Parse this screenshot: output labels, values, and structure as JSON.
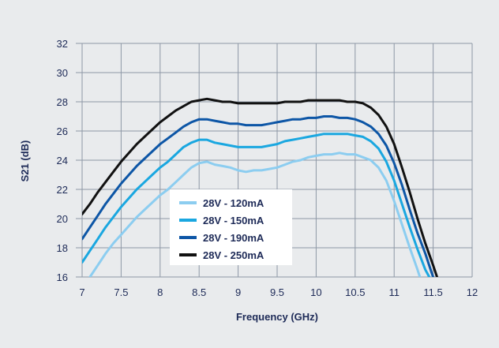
{
  "chart_data": {
    "type": "line",
    "title": "",
    "xlabel": "Frequency (GHz)",
    "ylabel": "S21 (dB)",
    "xlim": [
      7,
      12
    ],
    "ylim": [
      16,
      32
    ],
    "x_ticks": [
      "7",
      "7.5",
      "8",
      "8.5",
      "9",
      "9.5",
      "10",
      "10.5",
      "11",
      "11.5",
      "12"
    ],
    "y_ticks": [
      "16",
      "18",
      "20",
      "22",
      "24",
      "26",
      "28",
      "30",
      "32"
    ],
    "grid": true,
    "legend_position": "center-left",
    "series": [
      {
        "name": "28V - 120mA",
        "color": "#8ccdf0",
        "points": [
          [
            7.1,
            16.0
          ],
          [
            7.2,
            16.8
          ],
          [
            7.3,
            17.6
          ],
          [
            7.4,
            18.3
          ],
          [
            7.5,
            18.9
          ],
          [
            7.6,
            19.5
          ],
          [
            7.7,
            20.1
          ],
          [
            7.8,
            20.6
          ],
          [
            7.9,
            21.1
          ],
          [
            8.0,
            21.6
          ],
          [
            8.1,
            22.0
          ],
          [
            8.2,
            22.5
          ],
          [
            8.3,
            23.0
          ],
          [
            8.4,
            23.5
          ],
          [
            8.5,
            23.8
          ],
          [
            8.6,
            23.9
          ],
          [
            8.7,
            23.7
          ],
          [
            8.8,
            23.6
          ],
          [
            8.9,
            23.5
          ],
          [
            9.0,
            23.3
          ],
          [
            9.1,
            23.2
          ],
          [
            9.2,
            23.3
          ],
          [
            9.3,
            23.3
          ],
          [
            9.4,
            23.4
          ],
          [
            9.5,
            23.5
          ],
          [
            9.6,
            23.7
          ],
          [
            9.7,
            23.9
          ],
          [
            9.8,
            24.0
          ],
          [
            9.9,
            24.2
          ],
          [
            10.0,
            24.3
          ],
          [
            10.1,
            24.4
          ],
          [
            10.2,
            24.4
          ],
          [
            10.3,
            24.5
          ],
          [
            10.4,
            24.4
          ],
          [
            10.5,
            24.4
          ],
          [
            10.6,
            24.2
          ],
          [
            10.7,
            24.0
          ],
          [
            10.8,
            23.5
          ],
          [
            10.9,
            22.6
          ],
          [
            11.0,
            21.2
          ],
          [
            11.1,
            19.6
          ],
          [
            11.2,
            18.0
          ],
          [
            11.3,
            16.5
          ],
          [
            11.33,
            16.0
          ]
        ]
      },
      {
        "name": "28V - 150mA",
        "color": "#1aa7e0",
        "points": [
          [
            7.0,
            17.0
          ],
          [
            7.1,
            17.8
          ],
          [
            7.2,
            18.6
          ],
          [
            7.3,
            19.4
          ],
          [
            7.4,
            20.1
          ],
          [
            7.5,
            20.8
          ],
          [
            7.6,
            21.4
          ],
          [
            7.7,
            22.0
          ],
          [
            7.8,
            22.5
          ],
          [
            7.9,
            23.0
          ],
          [
            8.0,
            23.5
          ],
          [
            8.1,
            23.9
          ],
          [
            8.2,
            24.4
          ],
          [
            8.3,
            24.9
          ],
          [
            8.4,
            25.2
          ],
          [
            8.5,
            25.4
          ],
          [
            8.6,
            25.4
          ],
          [
            8.7,
            25.2
          ],
          [
            8.8,
            25.1
          ],
          [
            8.9,
            25.0
          ],
          [
            9.0,
            24.9
          ],
          [
            9.1,
            24.9
          ],
          [
            9.2,
            24.9
          ],
          [
            9.3,
            24.9
          ],
          [
            9.4,
            25.0
          ],
          [
            9.5,
            25.1
          ],
          [
            9.6,
            25.3
          ],
          [
            9.7,
            25.4
          ],
          [
            9.8,
            25.5
          ],
          [
            9.9,
            25.6
          ],
          [
            10.0,
            25.7
          ],
          [
            10.1,
            25.8
          ],
          [
            10.2,
            25.8
          ],
          [
            10.3,
            25.8
          ],
          [
            10.4,
            25.8
          ],
          [
            10.5,
            25.7
          ],
          [
            10.6,
            25.6
          ],
          [
            10.7,
            25.3
          ],
          [
            10.8,
            24.8
          ],
          [
            10.9,
            23.9
          ],
          [
            11.0,
            22.6
          ],
          [
            11.1,
            21.0
          ],
          [
            11.2,
            19.4
          ],
          [
            11.3,
            17.9
          ],
          [
            11.4,
            16.5
          ],
          [
            11.45,
            16.0
          ]
        ]
      },
      {
        "name": "28V - 190mA",
        "color": "#0d56a6",
        "points": [
          [
            7.0,
            18.6
          ],
          [
            7.1,
            19.4
          ],
          [
            7.2,
            20.2
          ],
          [
            7.3,
            21.0
          ],
          [
            7.4,
            21.7
          ],
          [
            7.5,
            22.4
          ],
          [
            7.6,
            23.0
          ],
          [
            7.7,
            23.6
          ],
          [
            7.8,
            24.1
          ],
          [
            7.9,
            24.6
          ],
          [
            8.0,
            25.1
          ],
          [
            8.1,
            25.5
          ],
          [
            8.2,
            25.9
          ],
          [
            8.3,
            26.3
          ],
          [
            8.4,
            26.6
          ],
          [
            8.5,
            26.8
          ],
          [
            8.6,
            26.8
          ],
          [
            8.7,
            26.7
          ],
          [
            8.8,
            26.6
          ],
          [
            8.9,
            26.5
          ],
          [
            9.0,
            26.5
          ],
          [
            9.1,
            26.4
          ],
          [
            9.2,
            26.4
          ],
          [
            9.3,
            26.4
          ],
          [
            9.4,
            26.5
          ],
          [
            9.5,
            26.6
          ],
          [
            9.6,
            26.7
          ],
          [
            9.7,
            26.8
          ],
          [
            9.8,
            26.8
          ],
          [
            9.9,
            26.9
          ],
          [
            10.0,
            26.9
          ],
          [
            10.1,
            27.0
          ],
          [
            10.2,
            27.0
          ],
          [
            10.3,
            26.9
          ],
          [
            10.4,
            26.9
          ],
          [
            10.5,
            26.8
          ],
          [
            10.6,
            26.6
          ],
          [
            10.7,
            26.3
          ],
          [
            10.8,
            25.8
          ],
          [
            10.9,
            25.0
          ],
          [
            11.0,
            23.8
          ],
          [
            11.1,
            22.3
          ],
          [
            11.2,
            20.6
          ],
          [
            11.3,
            19.0
          ],
          [
            11.4,
            17.6
          ],
          [
            11.48,
            16.3
          ],
          [
            11.5,
            16.0
          ]
        ]
      },
      {
        "name": "28V - 250mA",
        "color": "#111111",
        "points": [
          [
            7.0,
            20.3
          ],
          [
            7.1,
            21.0
          ],
          [
            7.2,
            21.8
          ],
          [
            7.3,
            22.5
          ],
          [
            7.4,
            23.2
          ],
          [
            7.5,
            23.9
          ],
          [
            7.6,
            24.5
          ],
          [
            7.7,
            25.1
          ],
          [
            7.8,
            25.6
          ],
          [
            7.9,
            26.1
          ],
          [
            8.0,
            26.6
          ],
          [
            8.1,
            27.0
          ],
          [
            8.2,
            27.4
          ],
          [
            8.3,
            27.7
          ],
          [
            8.4,
            28.0
          ],
          [
            8.5,
            28.1
          ],
          [
            8.6,
            28.2
          ],
          [
            8.7,
            28.1
          ],
          [
            8.8,
            28.0
          ],
          [
            8.9,
            28.0
          ],
          [
            9.0,
            27.9
          ],
          [
            9.1,
            27.9
          ],
          [
            9.2,
            27.9
          ],
          [
            9.3,
            27.9
          ],
          [
            9.4,
            27.9
          ],
          [
            9.5,
            27.9
          ],
          [
            9.6,
            28.0
          ],
          [
            9.7,
            28.0
          ],
          [
            9.8,
            28.0
          ],
          [
            9.9,
            28.1
          ],
          [
            10.0,
            28.1
          ],
          [
            10.1,
            28.1
          ],
          [
            10.2,
            28.1
          ],
          [
            10.3,
            28.1
          ],
          [
            10.4,
            28.0
          ],
          [
            10.5,
            28.0
          ],
          [
            10.6,
            27.9
          ],
          [
            10.7,
            27.6
          ],
          [
            10.8,
            27.1
          ],
          [
            10.9,
            26.3
          ],
          [
            11.0,
            25.1
          ],
          [
            11.1,
            23.5
          ],
          [
            11.2,
            21.8
          ],
          [
            11.3,
            20.0
          ],
          [
            11.4,
            18.3
          ],
          [
            11.5,
            16.8
          ],
          [
            11.55,
            16.0
          ]
        ]
      }
    ]
  }
}
